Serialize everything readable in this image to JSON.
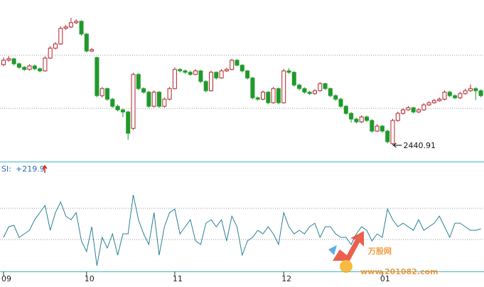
{
  "chart_data": {
    "type": "candlestick",
    "categories": [
      "09",
      null,
      null,
      null,
      null,
      null,
      null,
      null,
      null,
      null,
      null,
      null,
      null,
      null,
      null,
      null,
      "10",
      null,
      null,
      null,
      null,
      null,
      null,
      null,
      null,
      null,
      null,
      null,
      null,
      null,
      null,
      null,
      null,
      "11",
      null,
      null,
      null,
      null,
      null,
      null,
      null,
      null,
      null,
      null,
      null,
      null,
      null,
      null,
      null,
      null,
      null,
      null,
      null,
      null,
      "12",
      null,
      null,
      null,
      null,
      null,
      null,
      null,
      null,
      null,
      null,
      null,
      null,
      null,
      null,
      null,
      null,
      null,
      null,
      "01",
      null,
      null,
      null,
      null,
      null,
      null,
      null,
      null,
      null,
      null,
      null,
      null,
      null,
      null,
      null,
      null,
      null,
      null,
      null
    ],
    "ohlc": [
      [
        3010,
        3060,
        3000,
        3041
      ],
      [
        3041,
        3070,
        3030,
        3051
      ],
      [
        3051,
        3058,
        3005,
        3016
      ],
      [
        3016,
        3025,
        2980,
        2991
      ],
      [
        2991,
        3000,
        2965,
        2976
      ],
      [
        2976,
        3012,
        2968,
        3001
      ],
      [
        3001,
        3010,
        2970,
        2981
      ],
      [
        2981,
        2990,
        2955,
        2966
      ],
      [
        2966,
        3068,
        2960,
        3056
      ],
      [
        3056,
        3140,
        3050,
        3126
      ],
      [
        3126,
        3170,
        3118,
        3156
      ],
      [
        3156,
        3280,
        3150,
        3266
      ],
      [
        3266,
        3290,
        3255,
        3276
      ],
      [
        3276,
        3340,
        3268,
        3306
      ],
      [
        3306,
        3330,
        3296,
        3316
      ],
      [
        3316,
        3322,
        3215,
        3226
      ],
      [
        3226,
        3232,
        3095,
        3106
      ],
      [
        3106,
        3128,
        3098,
        3116
      ],
      [
        3060,
        3066,
        2780,
        2791
      ],
      [
        2791,
        2852,
        2778,
        2841
      ],
      [
        2841,
        2848,
        2755,
        2766
      ],
      [
        2766,
        2775,
        2705,
        2716
      ],
      [
        2716,
        2728,
        2680,
        2691
      ],
      [
        2691,
        2700,
        2640,
        2676
      ],
      [
        2676,
        2685,
        2480,
        2526
      ],
      [
        2560,
        2952,
        2550,
        2941
      ],
      [
        2941,
        2950,
        2830,
        2841
      ],
      [
        2841,
        2850,
        2805,
        2816
      ],
      [
        2816,
        2825,
        2705,
        2716
      ],
      [
        2716,
        2828,
        2708,
        2816
      ],
      [
        2816,
        2822,
        2705,
        2716
      ],
      [
        2716,
        2778,
        2708,
        2766
      ],
      [
        2766,
        2852,
        2758,
        2841
      ],
      [
        2841,
        2990,
        2835,
        2976
      ],
      [
        2976,
        2985,
        2955,
        2966
      ],
      [
        2966,
        2975,
        2945,
        2956
      ],
      [
        2956,
        2968,
        2930,
        2941
      ],
      [
        2941,
        2978,
        2935,
        2966
      ],
      [
        2966,
        2972,
        2880,
        2891
      ],
      [
        2891,
        2900,
        2815,
        2826
      ],
      [
        2826,
        2968,
        2820,
        2956
      ],
      [
        2956,
        2962,
        2905,
        2916
      ],
      [
        2916,
        2978,
        2910,
        2966
      ],
      [
        2966,
        2988,
        2958,
        2976
      ],
      [
        2976,
        3052,
        2970,
        3041
      ],
      [
        3041,
        3050,
        2998,
        3006
      ],
      [
        3006,
        3012,
        2955,
        2966
      ],
      [
        2966,
        2972,
        2905,
        2916
      ],
      [
        2916,
        2922,
        2765,
        2776
      ],
      [
        2776,
        2785,
        2755,
        2766
      ],
      [
        2766,
        2828,
        2758,
        2816
      ],
      [
        2816,
        2822,
        2730,
        2741
      ],
      [
        2741,
        2852,
        2735,
        2841
      ],
      [
        2841,
        2848,
        2730,
        2741
      ],
      [
        2741,
        2980,
        2735,
        2966
      ],
      [
        2966,
        2985,
        2945,
        2956
      ],
      [
        2956,
        2962,
        2855,
        2866
      ],
      [
        2866,
        2875,
        2830,
        2841
      ],
      [
        2841,
        2850,
        2805,
        2816
      ],
      [
        2816,
        2825,
        2795,
        2806
      ],
      [
        2806,
        2838,
        2798,
        2826
      ],
      [
        2826,
        2888,
        2820,
        2876
      ],
      [
        2876,
        2882,
        2830,
        2841
      ],
      [
        2841,
        2848,
        2780,
        2791
      ],
      [
        2791,
        2800,
        2755,
        2766
      ],
      [
        2766,
        2775,
        2705,
        2716
      ],
      [
        2716,
        2725,
        2655,
        2666
      ],
      [
        2666,
        2675,
        2600,
        2626
      ],
      [
        2626,
        2635,
        2595,
        2606
      ],
      [
        2606,
        2652,
        2598,
        2641
      ],
      [
        2641,
        2650,
        2605,
        2616
      ],
      [
        2616,
        2625,
        2530,
        2541
      ],
      [
        2541,
        2590,
        2535,
        2576
      ],
      [
        2576,
        2585,
        2530,
        2541
      ],
      [
        2541,
        2550,
        2455,
        2466
      ],
      [
        2452,
        2628,
        2440.91,
        2616
      ],
      [
        2616,
        2678,
        2608,
        2666
      ],
      [
        2666,
        2702,
        2658,
        2691
      ],
      [
        2691,
        2718,
        2684,
        2706
      ],
      [
        2706,
        2712,
        2665,
        2676
      ],
      [
        2676,
        2702,
        2668,
        2691
      ],
      [
        2691,
        2738,
        2684,
        2726
      ],
      [
        2726,
        2752,
        2718,
        2741
      ],
      [
        2741,
        2768,
        2734,
        2756
      ],
      [
        2756,
        2778,
        2748,
        2766
      ],
      [
        2766,
        2828,
        2758,
        2816
      ],
      [
        2816,
        2825,
        2780,
        2791
      ],
      [
        2791,
        2800,
        2765,
        2776
      ],
      [
        2776,
        2818,
        2768,
        2806
      ],
      [
        2806,
        2840,
        2798,
        2826
      ],
      [
        2826,
        2870,
        2818,
        2841
      ],
      [
        2841,
        2850,
        2760,
        2826
      ],
      [
        2826,
        2835,
        2780,
        2791
      ]
    ],
    "up_color": "#b0232a",
    "down_color": "#1f9a2a",
    "ylim": [
      2326,
      3466
    ],
    "ygrid": [
      3076,
      2701
    ],
    "annotation_index": 75,
    "si": {
      "name": "SI:",
      "color": "#2a7f96",
      "axis": "y2",
      "values": [
        44,
        264,
        293,
        44,
        117,
        191,
        410,
        557,
        704,
        191,
        557,
        777,
        484,
        410,
        557,
        -29,
        -249,
        264,
        -542,
        44,
        -176,
        117,
        -323,
        117,
        117,
        924,
        410,
        117,
        -103,
        557,
        -323,
        264,
        557,
        630,
        117,
        264,
        410,
        -29,
        -103,
        337,
        410,
        264,
        410,
        -29,
        484,
        264,
        -323,
        -29,
        44,
        191,
        117,
        264,
        117,
        -103,
        557,
        264,
        117,
        191,
        117,
        264,
        337,
        44,
        264,
        264,
        117,
        44,
        44,
        -103,
        117,
        264,
        191,
        -29,
        117,
        44,
        630,
        410,
        264,
        337,
        264,
        191,
        410,
        191,
        264,
        337,
        484,
        264,
        44,
        337,
        337,
        264,
        191,
        191,
        219.9
      ],
      "last_label": "+219.9"
    },
    "y2lim": [
      -689,
      1583
    ],
    "y2grid": [
      0,
      645
    ],
    "watermark": {
      "title": "万股网",
      "url": "www.201082.com"
    }
  }
}
